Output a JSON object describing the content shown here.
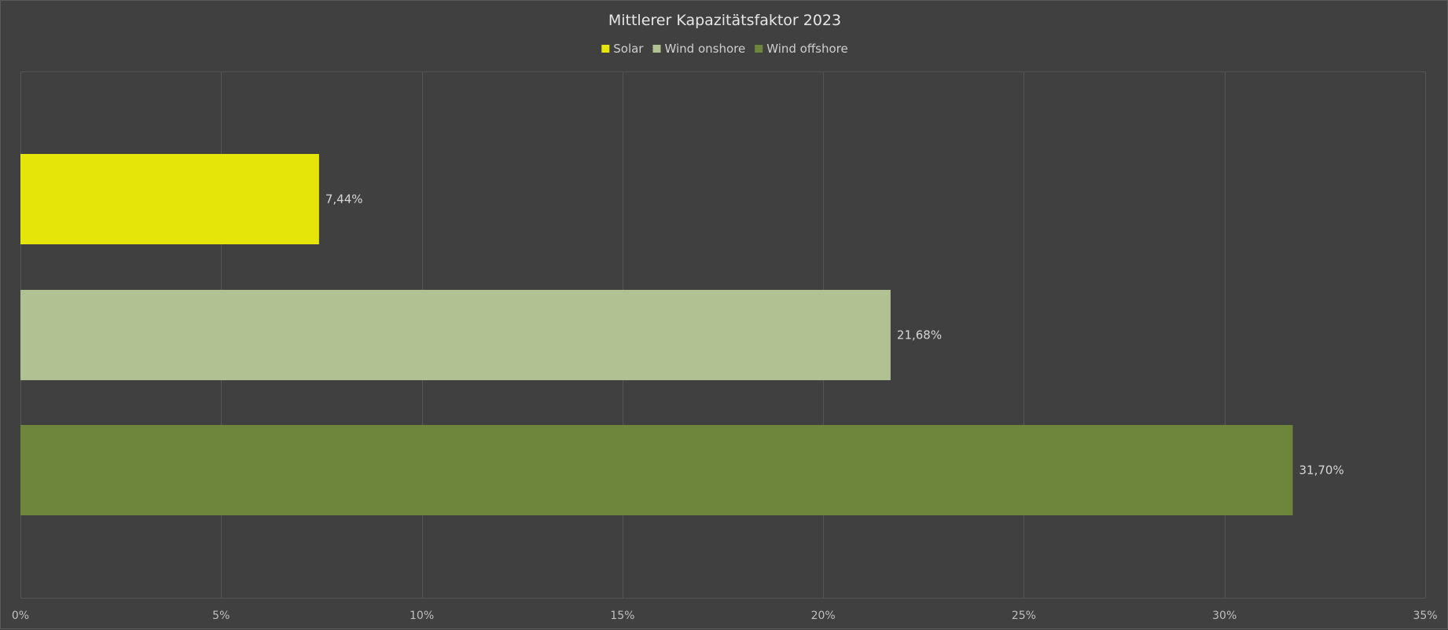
{
  "chart_data": {
    "type": "bar",
    "orientation": "horizontal",
    "title": "Mittlerer Kapazitätsfaktor  2023",
    "xlabel": "",
    "ylabel": "",
    "xlim": [
      0,
      35
    ],
    "x_ticks": [
      0,
      5,
      10,
      15,
      20,
      25,
      30,
      35
    ],
    "x_tick_labels": [
      "0%",
      "5%",
      "10%",
      "15%",
      "20%",
      "25%",
      "30%",
      "35%"
    ],
    "grid": true,
    "legend_position": "top",
    "series": [
      {
        "name": "Solar",
        "value": 7.44,
        "label": "7,44%",
        "color": "#e5e50a"
      },
      {
        "name": "Wind onshore",
        "value": 21.68,
        "label": "21,68%",
        "color": "#b1c292"
      },
      {
        "name": "Wind offshore",
        "value": 31.7,
        "label": "31,70%",
        "color": "#6e863c"
      }
    ]
  },
  "colors": {
    "background": "#404040",
    "gridline": "#545454",
    "text": "#e6e6e6"
  }
}
